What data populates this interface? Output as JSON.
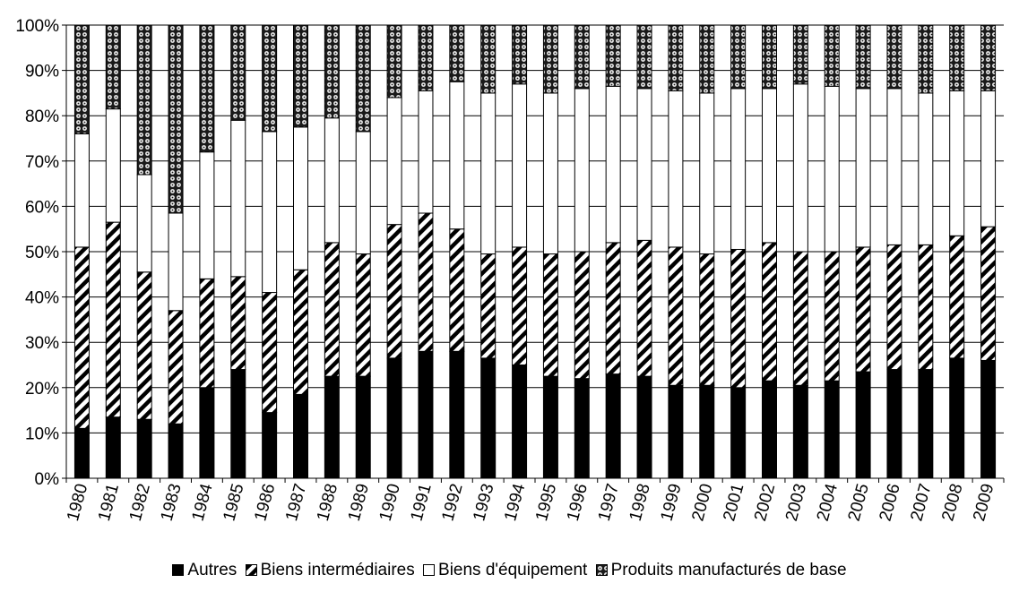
{
  "chart_data": {
    "type": "bar",
    "stacked": true,
    "percent": true,
    "title": "",
    "xlabel": "",
    "ylabel": "",
    "ylim": [
      0,
      100
    ],
    "yticks": [
      "0%",
      "10%",
      "20%",
      "30%",
      "40%",
      "50%",
      "60%",
      "70%",
      "80%",
      "90%",
      "100%"
    ],
    "grid": true,
    "legend_position": "bottom",
    "categories": [
      "1980",
      "1981",
      "1982",
      "1983",
      "1984",
      "1985",
      "1986",
      "1987",
      "1988",
      "1989",
      "1990",
      "1991",
      "1992",
      "1993",
      "1994",
      "1995",
      "1996",
      "1997",
      "1998",
      "1999",
      "2000",
      "2001",
      "2002",
      "2003",
      "2004",
      "2005",
      "2006",
      "2007",
      "2008",
      "2009"
    ],
    "series": [
      {
        "name": "Autres",
        "pattern": "solid",
        "color": "#000000",
        "values": [
          11,
          13.5,
          13,
          12,
          20,
          24,
          14.5,
          18.5,
          22.5,
          22.5,
          26.5,
          28,
          28,
          26.5,
          25,
          22.5,
          22,
          23,
          22.5,
          20.5,
          20.5,
          20,
          21.5,
          20.5,
          21.5,
          23.5,
          24,
          24,
          26.5,
          26
        ]
      },
      {
        "name": "Biens intermédiaires",
        "pattern": "diagonal-hatch",
        "color": "#000000",
        "values": [
          40,
          43,
          32.5,
          25,
          24,
          20.5,
          26.5,
          27.5,
          29.5,
          27,
          29.5,
          30.5,
          27,
          23,
          26,
          27,
          28,
          29,
          30,
          30.5,
          29,
          30.5,
          30.5,
          29.5,
          28.5,
          27.5,
          27.5,
          27.5,
          27,
          29.5
        ]
      },
      {
        "name": "Biens d'équipement",
        "pattern": "empty",
        "color": "#ffffff",
        "values": [
          25,
          25,
          21.5,
          21.5,
          28,
          34.5,
          35.5,
          31.5,
          27.5,
          27,
          28,
          27,
          32.5,
          35.5,
          36,
          35.5,
          36,
          34.5,
          33.5,
          34.5,
          35.5,
          35.5,
          34,
          37,
          36.5,
          35,
          34.5,
          33.5,
          32,
          30
        ]
      },
      {
        "name": "Produits manufacturés de base",
        "pattern": "dotted",
        "color": "#000000",
        "values": [
          24,
          18.5,
          33,
          41.5,
          28,
          21,
          23.5,
          22.5,
          20.5,
          23.5,
          16,
          14.5,
          12.5,
          15,
          13,
          15,
          14,
          13.5,
          14,
          14.5,
          15,
          14,
          14,
          13,
          13.5,
          14,
          14,
          15,
          14.5,
          14.5
        ]
      }
    ]
  }
}
